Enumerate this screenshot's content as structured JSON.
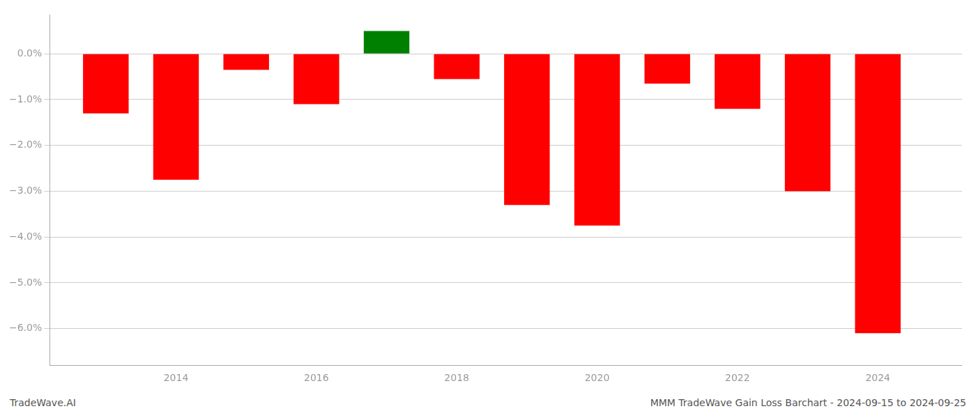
{
  "chart_data": {
    "type": "bar",
    "x": [
      2013,
      2014,
      2015,
      2016,
      2017,
      2018,
      2019,
      2020,
      2021,
      2022,
      2023,
      2024
    ],
    "values": [
      -1.3,
      -2.75,
      -0.35,
      -1.1,
      0.5,
      -0.55,
      -3.3,
      -3.75,
      -0.65,
      -1.2,
      -3.0,
      -6.1
    ],
    "colors": [
      "#ff0000",
      "#ff0000",
      "#ff0000",
      "#ff0000",
      "#008000",
      "#ff0000",
      "#ff0000",
      "#ff0000",
      "#ff0000",
      "#ff0000",
      "#ff0000",
      "#ff0000"
    ],
    "xlim": [
      2012.2,
      2025.2
    ],
    "xticks": [
      2014,
      2016,
      2018,
      2020,
      2022,
      2024
    ],
    "ylim": [
      -6.8,
      0.85
    ],
    "yticks": [
      {
        "value": 0.0,
        "label": "0.0%"
      },
      {
        "value": -1.0,
        "label": "−1.0%"
      },
      {
        "value": -2.0,
        "label": "−2.0%"
      },
      {
        "value": -3.0,
        "label": "−3.0%"
      },
      {
        "value": -4.0,
        "label": "−4.0%"
      },
      {
        "value": -5.0,
        "label": "−5.0%"
      },
      {
        "value": -6.0,
        "label": "−6.0%"
      }
    ],
    "grid": true,
    "annotations": [
      "TradeWave.AI",
      "MMM TradeWave Gain Loss Barchart - 2024-09-15 to 2024-09-25"
    ]
  }
}
